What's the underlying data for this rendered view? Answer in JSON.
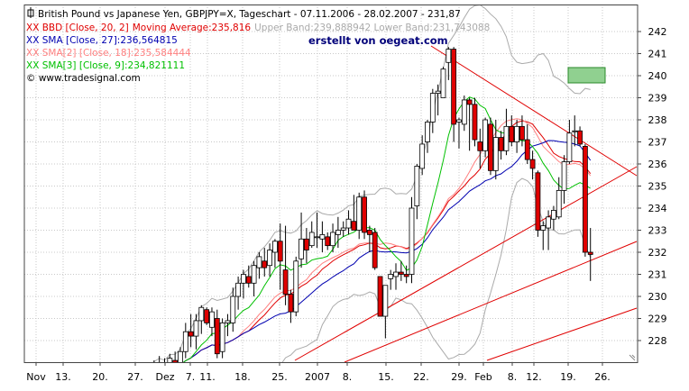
{
  "header": {
    "title": "British Pound vs Japanese Yen, GBPJPY=X, Tageschart - 07.11.2006 - 28.02.2007 - 231,87",
    "bbd_label": "XX BBD [Close, 20, 2]",
    "bbd_ma": "Moving Average:235,816",
    "bbd_bands": "Upper Band:239,888942 Lower Band:231,743088",
    "sma27": "XX SMA [Close, 27]:236,564815",
    "sma2": "XX SMA[2] [Close, 18]:235,584444",
    "sma3": "XX SMA[3] [Close, 9]:234,821111",
    "copyright": "© www.tradesignal.com",
    "watermark": "erstellt von oegeat.com"
  },
  "colors": {
    "bull": "#ffffff",
    "bear": "#e00000",
    "bbd": "#aaaaaa",
    "sma27": "#0000b0",
    "sma18": "#ff8080",
    "sma9": "#00c000",
    "trend": "#e00000",
    "grid": "#c8c8c8",
    "marker": "#90d090"
  },
  "chart_data": {
    "type": "candlestick",
    "title": "British Pound vs Japanese Yen, GBPJPY=X, Tageschart - 07.11.2006 - 28.02.2007 - 231,87",
    "ylim": [
      227,
      243
    ],
    "y_ticks": [
      228,
      229,
      230,
      231,
      232,
      233,
      234,
      235,
      236,
      237,
      238,
      239,
      240,
      241,
      242
    ],
    "x_tick_labels": [
      "Nov",
      "13.",
      "20.",
      "27.",
      "Dez",
      "7.",
      "11.",
      "18.",
      "25.",
      "2007",
      "8.",
      "15.",
      "22.",
      "29.",
      "Feb",
      "8.",
      "12.",
      "19.",
      "26."
    ],
    "candles": [
      {
        "o": 226.6,
        "h": 227.0,
        "l": 226.0,
        "c": 226.3
      },
      {
        "o": 226.4,
        "h": 227.1,
        "l": 226.1,
        "c": 226.8
      },
      {
        "o": 226.7,
        "h": 227.3,
        "l": 226.4,
        "c": 226.9
      },
      {
        "o": 226.8,
        "h": 227.2,
        "l": 226.4,
        "c": 226.6
      },
      {
        "o": 226.6,
        "h": 227.4,
        "l": 226.3,
        "c": 227.2
      },
      {
        "o": 227.1,
        "h": 227.5,
        "l": 226.7,
        "c": 227.0
      },
      {
        "o": 227.0,
        "h": 227.7,
        "l": 226.7,
        "c": 227.5
      },
      {
        "o": 227.5,
        "h": 228.8,
        "l": 227.2,
        "c": 228.4
      },
      {
        "o": 228.4,
        "h": 229.2,
        "l": 227.7,
        "c": 228.2
      },
      {
        "o": 228.2,
        "h": 229.2,
        "l": 227.6,
        "c": 228.9
      },
      {
        "o": 228.9,
        "h": 229.6,
        "l": 228.3,
        "c": 229.5
      },
      {
        "o": 229.4,
        "h": 229.5,
        "l": 228.7,
        "c": 228.8
      },
      {
        "o": 228.6,
        "h": 229.5,
        "l": 228.2,
        "c": 229.3
      },
      {
        "o": 229.0,
        "h": 229.4,
        "l": 227.2,
        "c": 227.4
      },
      {
        "o": 227.5,
        "h": 229.0,
        "l": 227.2,
        "c": 228.8
      },
      {
        "o": 228.8,
        "h": 229.2,
        "l": 228.2,
        "c": 228.9
      },
      {
        "o": 228.8,
        "h": 230.4,
        "l": 228.4,
        "c": 230.0
      },
      {
        "o": 230.0,
        "h": 230.9,
        "l": 229.4,
        "c": 230.6
      },
      {
        "o": 230.6,
        "h": 231.2,
        "l": 229.9,
        "c": 231.0
      },
      {
        "o": 230.9,
        "h": 231.4,
        "l": 230.4,
        "c": 230.6
      },
      {
        "o": 230.6,
        "h": 231.6,
        "l": 230.0,
        "c": 231.4
      },
      {
        "o": 231.3,
        "h": 232.0,
        "l": 230.8,
        "c": 231.8
      },
      {
        "o": 231.6,
        "h": 232.2,
        "l": 230.9,
        "c": 231.3
      },
      {
        "o": 231.4,
        "h": 232.4,
        "l": 230.9,
        "c": 232.1
      },
      {
        "o": 232.0,
        "h": 232.6,
        "l": 231.3,
        "c": 232.5
      },
      {
        "o": 232.5,
        "h": 233.3,
        "l": 230.3,
        "c": 231.6
      },
      {
        "o": 231.2,
        "h": 233.2,
        "l": 229.6,
        "c": 230.1
      },
      {
        "o": 230.1,
        "h": 230.3,
        "l": 228.8,
        "c": 229.3
      },
      {
        "o": 229.3,
        "h": 231.8,
        "l": 229.1,
        "c": 231.6
      },
      {
        "o": 231.7,
        "h": 233.8,
        "l": 231.3,
        "c": 232.6
      },
      {
        "o": 232.6,
        "h": 233.1,
        "l": 231.5,
        "c": 232.1
      },
      {
        "o": 232.3,
        "h": 233.4,
        "l": 232.2,
        "c": 232.9
      },
      {
        "o": 232.7,
        "h": 233.8,
        "l": 232.2,
        "c": 232.7
      },
      {
        "o": 232.6,
        "h": 233.4,
        "l": 232.0,
        "c": 232.8
      },
      {
        "o": 232.7,
        "h": 232.9,
        "l": 232.1,
        "c": 232.3
      },
      {
        "o": 232.3,
        "h": 233.3,
        "l": 232.0,
        "c": 232.9
      },
      {
        "o": 232.8,
        "h": 233.6,
        "l": 232.2,
        "c": 233.0
      },
      {
        "o": 233.0,
        "h": 233.4,
        "l": 232.7,
        "c": 233.1
      },
      {
        "o": 233.1,
        "h": 233.9,
        "l": 232.8,
        "c": 233.5
      },
      {
        "o": 233.4,
        "h": 234.6,
        "l": 233.0,
        "c": 233.0
      },
      {
        "o": 233.0,
        "h": 234.7,
        "l": 232.6,
        "c": 234.5
      },
      {
        "o": 234.5,
        "h": 234.8,
        "l": 232.6,
        "c": 232.9
      },
      {
        "o": 233.0,
        "h": 233.2,
        "l": 232.0,
        "c": 232.8
      },
      {
        "o": 232.9,
        "h": 233.1,
        "l": 231.2,
        "c": 231.3
      },
      {
        "o": 230.9,
        "h": 230.9,
        "l": 229.1,
        "c": 229.1
      },
      {
        "o": 229.1,
        "h": 230.5,
        "l": 228.1,
        "c": 230.5
      },
      {
        "o": 230.8,
        "h": 231.2,
        "l": 230.3,
        "c": 231.0
      },
      {
        "o": 230.9,
        "h": 231.5,
        "l": 230.3,
        "c": 231.1
      },
      {
        "o": 231.1,
        "h": 231.6,
        "l": 230.7,
        "c": 231.0
      },
      {
        "o": 231.0,
        "h": 231.4,
        "l": 230.6,
        "c": 230.9
      },
      {
        "o": 231.0,
        "h": 234.5,
        "l": 230.6,
        "c": 234.0
      },
      {
        "o": 234.1,
        "h": 236.0,
        "l": 233.5,
        "c": 235.9
      },
      {
        "o": 235.8,
        "h": 237.3,
        "l": 235.5,
        "c": 236.9
      },
      {
        "o": 237.0,
        "h": 238.0,
        "l": 236.5,
        "c": 237.9
      },
      {
        "o": 237.9,
        "h": 239.4,
        "l": 237.4,
        "c": 239.2
      },
      {
        "o": 239.2,
        "h": 239.6,
        "l": 238.2,
        "c": 239.3
      },
      {
        "o": 239.0,
        "h": 240.4,
        "l": 239.0,
        "c": 240.3
      },
      {
        "o": 240.6,
        "h": 241.3,
        "l": 239.8,
        "c": 241.2
      },
      {
        "o": 241.2,
        "h": 241.3,
        "l": 237.0,
        "c": 237.8
      },
      {
        "o": 237.9,
        "h": 238.1,
        "l": 236.7,
        "c": 238.0
      },
      {
        "o": 237.8,
        "h": 239.1,
        "l": 237.5,
        "c": 238.9
      },
      {
        "o": 238.9,
        "h": 239.0,
        "l": 236.6,
        "c": 238.7
      },
      {
        "o": 238.7,
        "h": 239.0,
        "l": 236.8,
        "c": 237.1
      },
      {
        "o": 237.0,
        "h": 237.6,
        "l": 235.8,
        "c": 236.6
      },
      {
        "o": 236.6,
        "h": 238.1,
        "l": 236.3,
        "c": 238.0
      },
      {
        "o": 237.8,
        "h": 238.1,
        "l": 235.5,
        "c": 235.7
      },
      {
        "o": 235.7,
        "h": 238.0,
        "l": 235.3,
        "c": 237.2
      },
      {
        "o": 237.2,
        "h": 237.5,
        "l": 236.2,
        "c": 236.6
      },
      {
        "o": 236.6,
        "h": 238.5,
        "l": 236.4,
        "c": 237.7
      },
      {
        "o": 237.7,
        "h": 238.2,
        "l": 236.8,
        "c": 237.0
      },
      {
        "o": 237.0,
        "h": 238.0,
        "l": 236.5,
        "c": 237.7
      },
      {
        "o": 237.7,
        "h": 238.2,
        "l": 236.8,
        "c": 237.1
      },
      {
        "o": 237.1,
        "h": 237.8,
        "l": 236.0,
        "c": 236.2
      },
      {
        "o": 236.2,
        "h": 236.6,
        "l": 235.3,
        "c": 235.8
      },
      {
        "o": 235.6,
        "h": 235.7,
        "l": 232.7,
        "c": 233.0
      },
      {
        "o": 233.0,
        "h": 233.4,
        "l": 232.1,
        "c": 233.2
      },
      {
        "o": 233.1,
        "h": 233.9,
        "l": 232.1,
        "c": 233.6
      },
      {
        "o": 233.5,
        "h": 234.1,
        "l": 233.0,
        "c": 233.9
      },
      {
        "o": 233.6,
        "h": 235.4,
        "l": 233.5,
        "c": 234.8
      },
      {
        "o": 234.8,
        "h": 236.4,
        "l": 234.2,
        "c": 236.1
      },
      {
        "o": 236.1,
        "h": 238.0,
        "l": 236.0,
        "c": 237.4
      },
      {
        "o": 237.5,
        "h": 238.2,
        "l": 236.8,
        "c": 237.5
      },
      {
        "o": 237.5,
        "h": 237.7,
        "l": 236.8,
        "c": 236.9
      },
      {
        "o": 236.8,
        "h": 236.9,
        "l": 231.8,
        "c": 232.0
      },
      {
        "o": 232.0,
        "h": 233.1,
        "l": 230.7,
        "c": 231.9
      }
    ]
  }
}
